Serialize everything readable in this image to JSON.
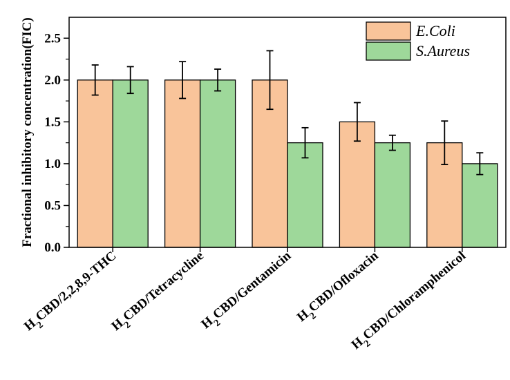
{
  "chart_data": {
    "type": "bar",
    "ylabel": "Fractional inhibitory concentration(FIC)",
    "xlabel": "",
    "ylim": [
      0,
      2.75
    ],
    "yticks": [
      0.0,
      0.5,
      1.0,
      1.5,
      2.0,
      2.5
    ],
    "ytick_labels": [
      "0.0",
      "0.5",
      "1.0",
      "1.5",
      "2.0",
      "2.5"
    ],
    "grid": false,
    "legend_position": "top-right",
    "categories": [
      {
        "prefix": "H",
        "sub": "2",
        "suffix": "CBD/2,2,8,9-THC"
      },
      {
        "prefix": "H",
        "sub": "2",
        "suffix": "CBD/Tetracycline"
      },
      {
        "prefix": "H",
        "sub": "2",
        "suffix": "CBD/Gentamicin"
      },
      {
        "prefix": "H",
        "sub": "2",
        "suffix": "CBD/Ofloxacin"
      },
      {
        "prefix": "H",
        "sub": "2",
        "suffix": "CBD/Chloramphenicol"
      }
    ],
    "series": [
      {
        "name": "E.Coli",
        "color": "#f9c49a",
        "values": [
          2.0,
          2.0,
          2.0,
          1.5,
          1.25
        ],
        "errors": [
          0.18,
          0.22,
          0.35,
          0.23,
          0.26
        ]
      },
      {
        "name": "S.Aureus",
        "color": "#9ed89a",
        "values": [
          2.0,
          2.0,
          1.25,
          1.25,
          1.0
        ],
        "errors": [
          0.16,
          0.13,
          0.18,
          0.09,
          0.13
        ]
      }
    ]
  }
}
